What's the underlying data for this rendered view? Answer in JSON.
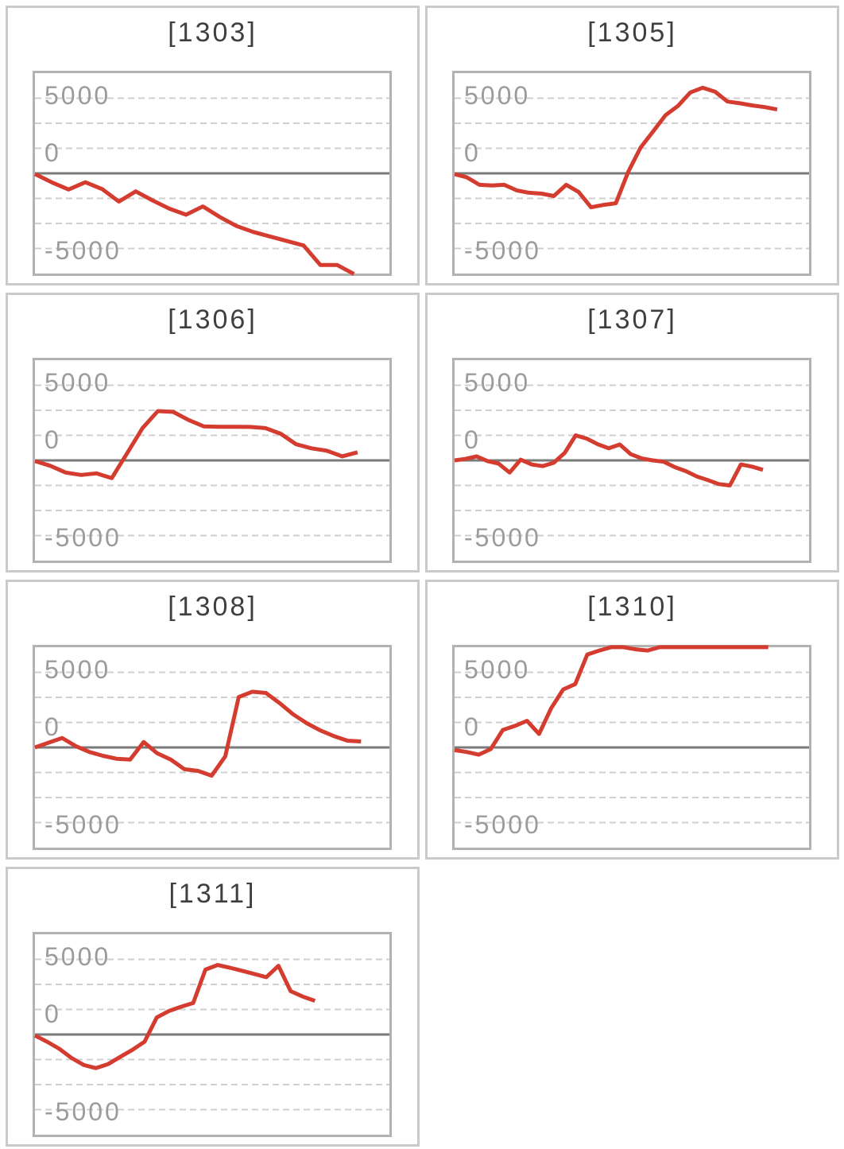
{
  "page": {
    "background": "#ffffff"
  },
  "axis": {
    "top": "5000",
    "zero": "0",
    "bottom": "-5000"
  },
  "colors": {
    "line": "#d43c30",
    "grid_dashed": "#cfcfcf",
    "zero_line": "#7a7a7a",
    "title": "#3f3f3f",
    "axis_label": "#9b9b9b",
    "chart_border": "#b2b2b2",
    "cell_border": "#cacaca"
  },
  "chart_data": [
    {
      "type": "line",
      "title": "[1303]",
      "y_ticks": [
        "5000",
        "0",
        "-5000"
      ],
      "x_tick_labels": [],
      "ylim": [
        -6670,
        6670
      ],
      "grid": "dashed-horizontal",
      "legend": "none",
      "x_extent_fraction": 0.9,
      "values": [
        -50,
        -600,
        -1075,
        -590,
        -1050,
        -1880,
        -1200,
        -1800,
        -2350,
        -2750,
        -2200,
        -2900,
        -3500,
        -3900,
        -4200,
        -4500,
        -4800,
        -6100,
        -6100,
        -6700
      ]
    },
    {
      "type": "line",
      "title": "[1305]",
      "y_ticks": [
        "5000",
        "0",
        "-5000"
      ],
      "x_tick_labels": [],
      "ylim": [
        -6670,
        6670
      ],
      "grid": "dashed-horizontal",
      "legend": "none",
      "x_extent_fraction": 0.91,
      "values": [
        -50,
        -270,
        -760,
        -810,
        -760,
        -1130,
        -1290,
        -1350,
        -1510,
        -760,
        -1240,
        -2260,
        -2100,
        -1990,
        100,
        1720,
        2790,
        3870,
        4480,
        5380,
        5700,
        5430,
        4780,
        4660,
        4520,
        4410,
        4250
      ]
    },
    {
      "type": "line",
      "title": "[1306]",
      "y_ticks": [
        "5000",
        "0",
        "-5000"
      ],
      "x_tick_labels": [],
      "ylim": [
        -6670,
        6670
      ],
      "grid": "dashed-horizontal",
      "legend": "none",
      "x_extent_fraction": 0.91,
      "values": [
        -50,
        -360,
        -810,
        -970,
        -860,
        -1180,
        480,
        2150,
        3280,
        3230,
        2690,
        2260,
        2240,
        2240,
        2230,
        2150,
        1770,
        1075,
        805,
        645,
        270,
        540
      ]
    },
    {
      "type": "line",
      "title": "[1307]",
      "y_ticks": [
        "5000",
        "0",
        "-5000"
      ],
      "x_tick_labels": [],
      "ylim": [
        -6670,
        6670
      ],
      "grid": "dashed-horizontal",
      "legend": "none",
      "x_extent_fraction": 0.87,
      "values": [
        0,
        100,
        270,
        -50,
        -215,
        -810,
        50,
        -270,
        -380,
        -160,
        500,
        1665,
        1450,
        1075,
        805,
        1060,
        415,
        125,
        0,
        -90,
        -450,
        -715,
        -1075,
        -1310,
        -1575,
        -1665,
        -270,
        -415,
        -630
      ]
    },
    {
      "type": "line",
      "title": "[1308]",
      "y_ticks": [
        "5000",
        "0",
        "-5000"
      ],
      "x_tick_labels": [],
      "ylim": [
        -6670,
        6670
      ],
      "grid": "dashed-horizontal",
      "legend": "none",
      "x_extent_fraction": 0.92,
      "values": [
        0,
        320,
        630,
        90,
        -300,
        -555,
        -750,
        -810,
        360,
        -390,
        -810,
        -1450,
        -1560,
        -1880,
        -600,
        3355,
        3710,
        3625,
        2960,
        2205,
        1615,
        1130,
        755,
        450,
        395
      ]
    },
    {
      "type": "line",
      "title": "[1310]",
      "y_ticks": [
        "5000",
        "0",
        "-5000"
      ],
      "x_tick_labels": [],
      "ylim": [
        -6670,
        6670
      ],
      "grid": "dashed-horizontal",
      "legend": "none",
      "x_extent_fraction": 0.885,
      "values": [
        -180,
        -300,
        -480,
        -105,
        1165,
        1435,
        1775,
        900,
        2600,
        3855,
        4215,
        6185,
        6450,
        6670,
        6670,
        6530,
        6450,
        6670,
        6670,
        6670,
        6670,
        6670,
        6670,
        6670,
        6670,
        6670,
        6670
      ]
    },
    {
      "type": "line",
      "title": "[1311]",
      "y_ticks": [
        "5000",
        "0",
        "-5000"
      ],
      "x_tick_labels": [],
      "ylim": [
        -6670,
        6670
      ],
      "grid": "dashed-horizontal",
      "legend": "none",
      "x_extent_fraction": 0.79,
      "values": [
        -70,
        -480,
        -950,
        -1560,
        -2025,
        -2240,
        -1975,
        -1490,
        -1020,
        -480,
        1130,
        1560,
        1845,
        2095,
        4320,
        4625,
        4445,
        4245,
        4030,
        3815,
        4570,
        2885,
        2525,
        2240
      ]
    }
  ]
}
